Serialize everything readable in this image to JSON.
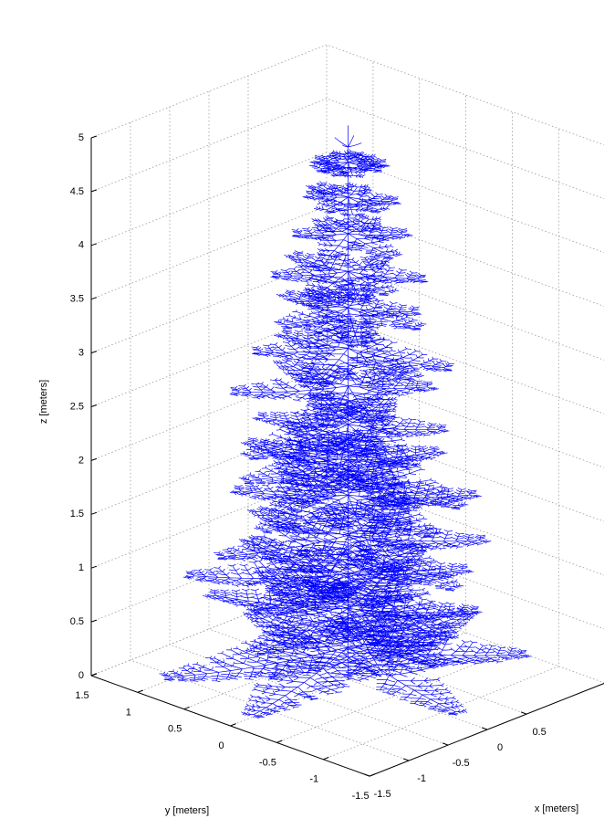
{
  "chart_data": {
    "type": "tree3d",
    "xlabel": "x [meters]",
    "ylabel": "y [meters]",
    "zlabel": "z [meters]",
    "xlim": [
      -1.5,
      1.5
    ],
    "ylim": [
      -1.5,
      1.5
    ],
    "zlim": [
      0,
      5
    ],
    "xticks": [
      -1.5,
      -1,
      -0.5,
      0,
      0.5
    ],
    "yticks": [
      -1.5,
      -1,
      -0.5,
      0,
      0.5,
      1,
      1.5
    ],
    "zticks": [
      0,
      0.5,
      1,
      1.5,
      2,
      2.5,
      3,
      3.5,
      4,
      4.5,
      5
    ],
    "grid": true,
    "color": "#0000ff"
  }
}
